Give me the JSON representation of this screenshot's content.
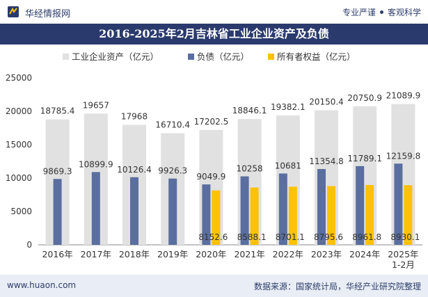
{
  "header": {
    "site_name": "华经情报网",
    "tag1": "专业严谨",
    "tag2": "客观科学"
  },
  "footer": {
    "url": "www.huaon.com",
    "source": "数据来源：国家统计局，华经产业研究院整理"
  },
  "colors": {
    "assets": "#e1e1e1",
    "liabilities": "#5a6e9f",
    "equity": "#fcc208",
    "brand": "#2a3a6d"
  },
  "chart_data": {
    "type": "bar",
    "title": "2016-2025年2月吉林省工业企业资产及负债",
    "categories": [
      "2016年",
      "2017年",
      "2018年",
      "2019年",
      "2020年",
      "2021年",
      "2022年",
      "2023年",
      "2024年",
      "2025年\n1-2月"
    ],
    "series": [
      {
        "name": "工业企业资产（亿元）",
        "values": [
          18785.4,
          19657,
          17968,
          16710.4,
          17202.5,
          18846.1,
          19382.1,
          20150.4,
          20750.9,
          21089.9
        ]
      },
      {
        "name": "负债（亿元）",
        "values": [
          9869.3,
          10899.9,
          10126.4,
          9926.3,
          9049.9,
          10258,
          10681,
          11354.8,
          11789.1,
          12159.8
        ]
      },
      {
        "name": "所有者权益（亿元）",
        "values": [
          null,
          null,
          null,
          null,
          8152.6,
          8588.1,
          8701.1,
          8795.6,
          8961.8,
          8930.1
        ]
      }
    ],
    "labels": [
      [
        "18785.4",
        "19657",
        "17968",
        "16710.4",
        "17202.5",
        "18846.1",
        "19382.1",
        "20150.4",
        "20750.9",
        "21089.9"
      ],
      [
        "9869.3",
        "10899.9",
        "10126.4",
        "9926.3",
        "9049.9",
        "10258",
        "10681",
        "11354.8",
        "11789.1",
        "12159.8"
      ],
      [
        "",
        "",
        "",
        "",
        "8152.6",
        "8588.1",
        "8701.1",
        "8795.6",
        "8961.8",
        "8930.1"
      ]
    ],
    "yticks": [
      0,
      5000,
      10000,
      15000,
      20000,
      25000
    ],
    "ylim": [
      0,
      25000
    ],
    "grid": false,
    "legend_position": "top"
  }
}
